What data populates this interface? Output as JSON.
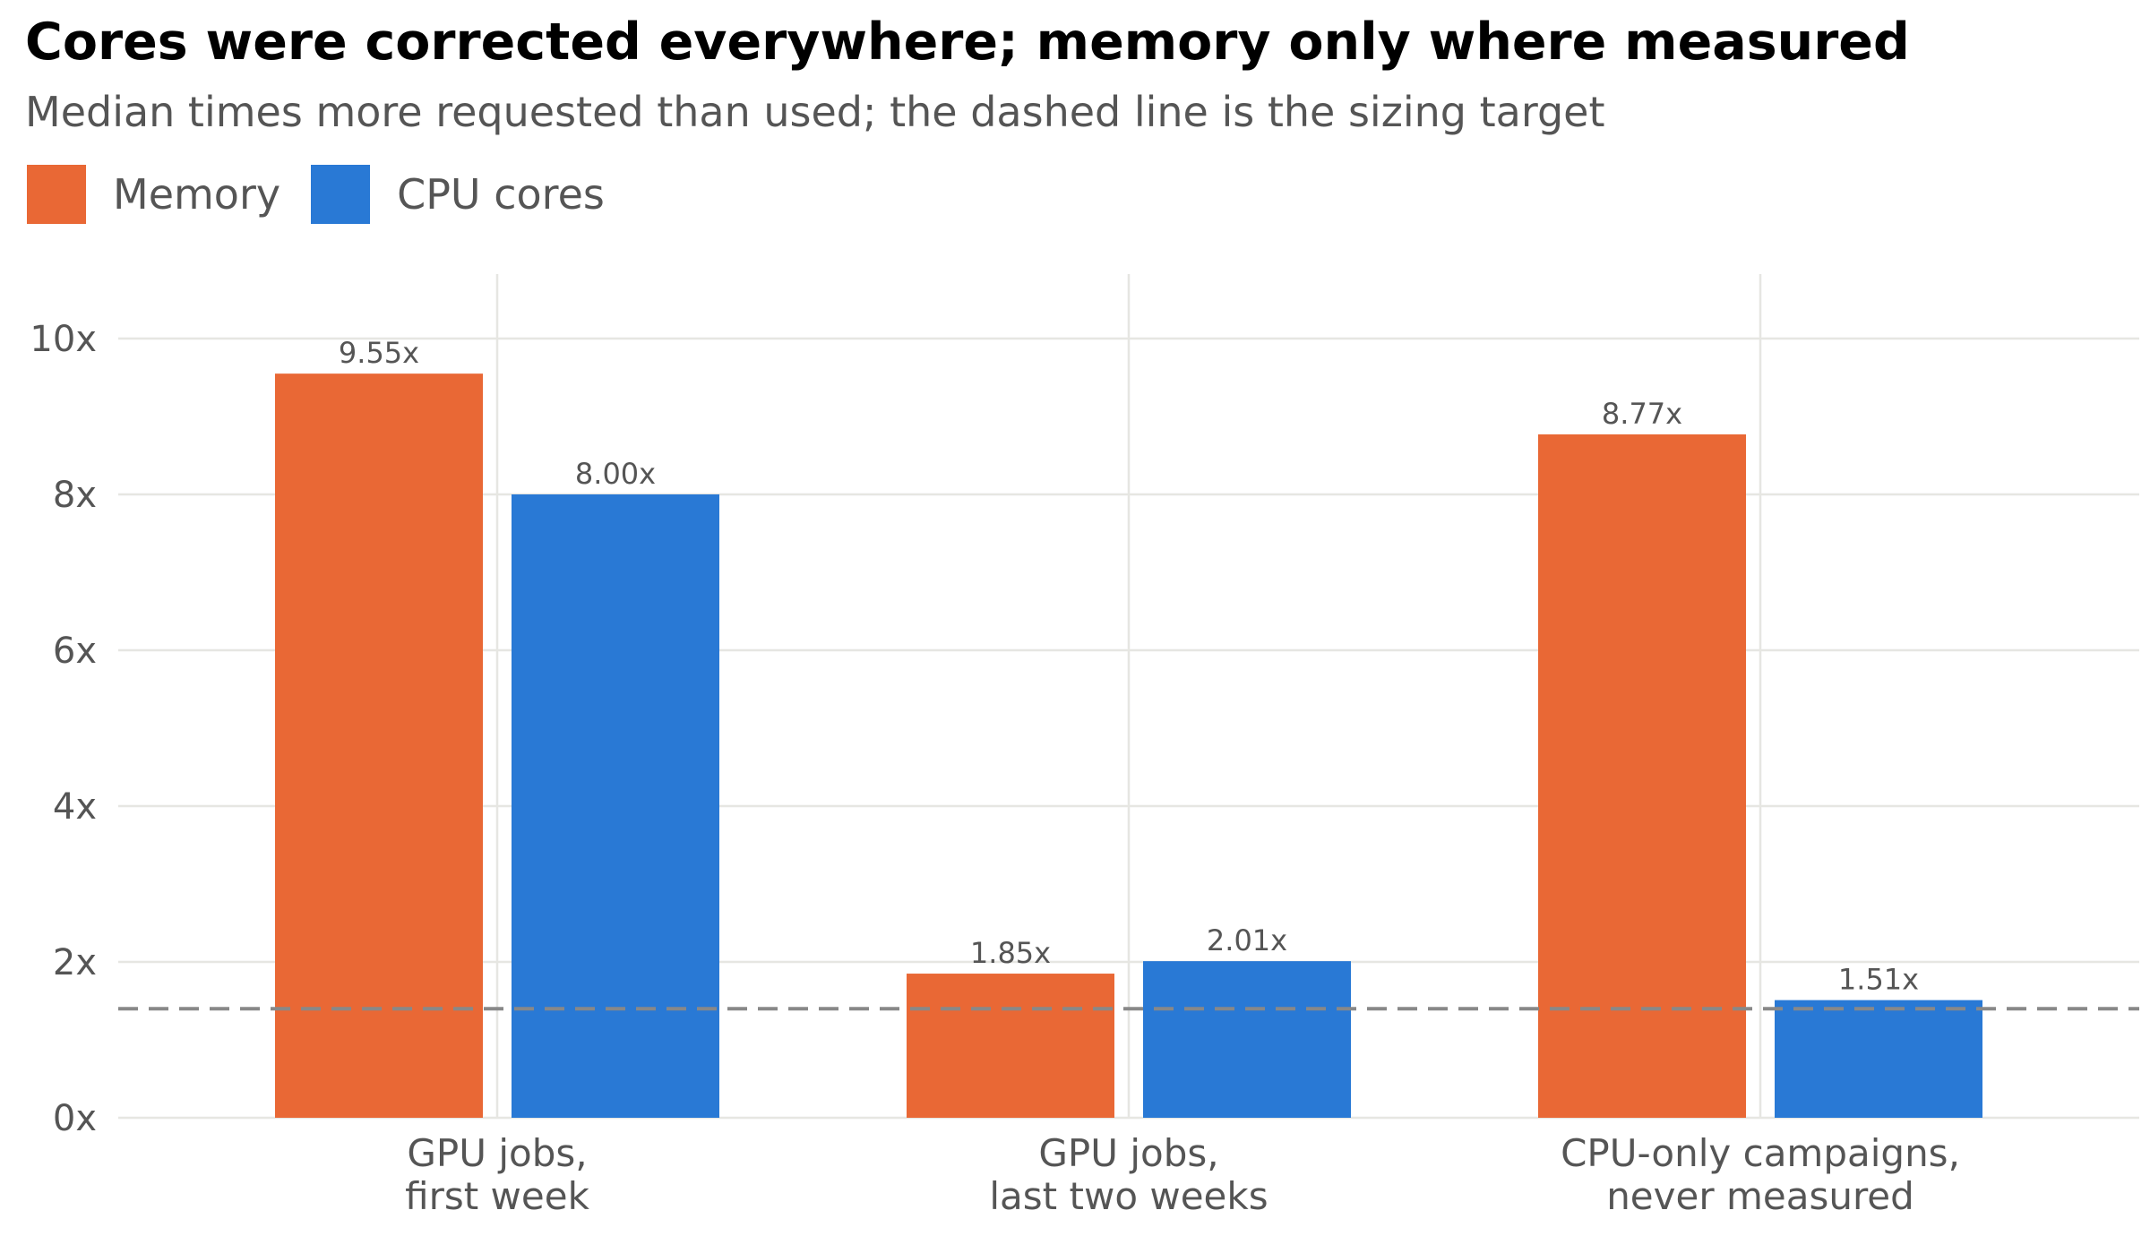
{
  "chart_data": {
    "type": "bar",
    "title": "Cores were corrected everywhere; memory only where measured",
    "subtitle": "Median times more requested than used; the dashed line is the sizing target",
    "categories": [
      [
        "GPU jobs,",
        "first week"
      ],
      [
        "GPU jobs,",
        "last two weeks"
      ],
      [
        "CPU-only campaigns,",
        "never measured"
      ]
    ],
    "series": [
      {
        "name": "Memory",
        "color": "#E96835",
        "values": [
          9.55,
          1.85,
          8.77
        ],
        "labels": [
          "9.55x",
          "1.85x",
          "8.77x"
        ]
      },
      {
        "name": "CPU cores",
        "color": "#2979D5",
        "values": [
          8.0,
          2.01,
          1.51
        ],
        "labels": [
          "8.00x",
          "2.01x",
          "1.51x"
        ]
      }
    ],
    "yticks": [
      0,
      2,
      4,
      6,
      8,
      10
    ],
    "ytick_labels": [
      "0x",
      "2x",
      "4x",
      "6x",
      "8x",
      "10x"
    ],
    "ylim": [
      0,
      10.8
    ],
    "reference_line": {
      "value": 1.4,
      "style": "dashed",
      "color": "#888888"
    },
    "grid": true,
    "legend_position": "top-left",
    "xlabel": "",
    "ylabel": ""
  }
}
